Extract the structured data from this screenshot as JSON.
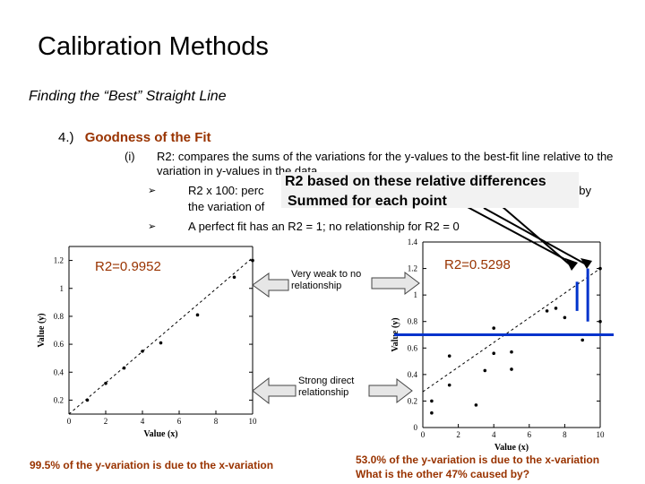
{
  "slide": {
    "title": "Calibration Methods",
    "subtitle": "Finding the “Best” Straight Line",
    "section_number": "4.)",
    "section_heading": "Goodness of the Fit",
    "item_label": "(i)",
    "r2_definition": "R2: compares the sums of the variations for the y-values to the best-fit line relative to the variation in y-values in the data",
    "bullet1_start": "R2 x 100: perc",
    "bullet1_end": "ned by",
    "bullet1_line2": "the variation of",
    "bullet2": "A perfect fit has an R2 = 1; no relationship for R2 = 0",
    "callout_line1": "R2 based on these relative differences",
    "callout_line2": "Summed for each point",
    "left_r2": "R2=0.9952",
    "right_r2": "R2=0.5298",
    "weak_label": "Very weak to no relationship",
    "strong_label": "Strong direct relationship",
    "left_caption": "99.5% of the y-variation is due to the x-variation",
    "right_caption_1": "53.0% of the y-variation is due to the x-variation",
    "right_caption_2": "What is the other 47% caused by?"
  },
  "colors": {
    "accent": "#993300",
    "mean_line": "#0033cc",
    "arrow_fill": "#e6e6e6"
  },
  "chart_data": [
    {
      "type": "scatter",
      "title": "",
      "xlabel": "Value (x)",
      "ylabel": "Value (y)",
      "xlim": [
        0,
        10
      ],
      "ylim": [
        0.1,
        1.3
      ],
      "x_ticks": [
        "0",
        "2",
        "4",
        "6",
        "8",
        "10"
      ],
      "y_ticks": [
        "0.2",
        "0.4",
        "0.6",
        "0.8",
        "1",
        "1.2"
      ],
      "points": [
        [
          1,
          0.2
        ],
        [
          2,
          0.32
        ],
        [
          3,
          0.43
        ],
        [
          4,
          0.55
        ],
        [
          5,
          0.61
        ],
        [
          7,
          0.81
        ],
        [
          9,
          1.08
        ],
        [
          10,
          1.2
        ]
      ],
      "fit_line": [
        [
          0,
          0.1
        ],
        [
          10,
          1.22
        ]
      ],
      "annotation": "R2=0.9952"
    },
    {
      "type": "scatter",
      "title": "",
      "xlabel": "Value (x)",
      "ylabel": "Value (y)",
      "xlim": [
        0,
        10
      ],
      "ylim": [
        0,
        1.4
      ],
      "x_ticks": [
        "0",
        "2",
        "4",
        "6",
        "8",
        "10"
      ],
      "y_ticks": [
        "0",
        "0.2",
        "0.4",
        "0.6",
        "0.8",
        "1",
        "1.2",
        "1.4"
      ],
      "points": [
        [
          0.5,
          0.2
        ],
        [
          0.5,
          0.11
        ],
        [
          1.5,
          0.32
        ],
        [
          1.5,
          0.54
        ],
        [
          3,
          0.17
        ],
        [
          3.5,
          0.43
        ],
        [
          4,
          0.75
        ],
        [
          4,
          0.56
        ],
        [
          5,
          0.44
        ],
        [
          5,
          0.57
        ],
        [
          7,
          0.88
        ],
        [
          7.5,
          0.9
        ],
        [
          8,
          0.83
        ],
        [
          9,
          0.66
        ],
        [
          10,
          1.2
        ],
        [
          10,
          0.8
        ]
      ],
      "fit_line": [
        [
          0,
          0.27
        ],
        [
          10,
          1.2
        ]
      ],
      "mean_line": 0.7,
      "annotation": "R2=0.5298"
    }
  ]
}
